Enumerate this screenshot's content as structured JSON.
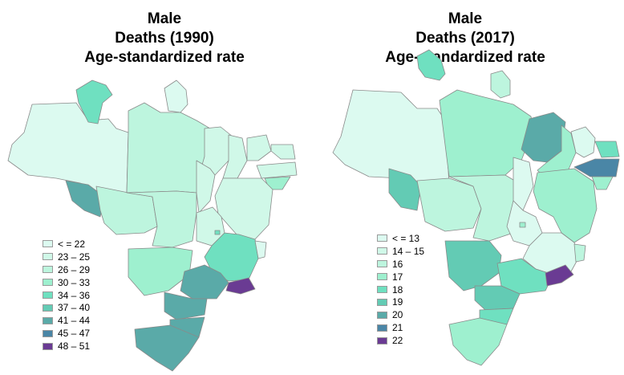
{
  "panels": [
    {
      "title": [
        "Male",
        "Deaths (1990)",
        "Age-standardized rate"
      ],
      "legend": [
        {
          "label": "< = 22",
          "color": "#dcfaf0"
        },
        {
          "label": "23 – 25",
          "color": "#d0f8e8"
        },
        {
          "label": "26 – 29",
          "color": "#bdf5de"
        },
        {
          "label": "30 – 33",
          "color": "#9ef0cf"
        },
        {
          "label": "34 – 36",
          "color": "#6fe0c0"
        },
        {
          "label": "37 – 40",
          "color": "#63cbb4"
        },
        {
          "label": "41 – 44",
          "color": "#5aaaa8"
        },
        {
          "label": "45 – 47",
          "color": "#4a86a6"
        },
        {
          "label": "48 – 51",
          "color": "#6a3b93"
        }
      ]
    },
    {
      "title": [
        "Male",
        "Deaths (2017)",
        "Age-standardized rate"
      ],
      "legend": [
        {
          "label": "< = 13",
          "color": "#dcfaf0"
        },
        {
          "label": "14 – 15",
          "color": "#d0f8e8"
        },
        {
          "label": "16",
          "color": "#bdf5de"
        },
        {
          "label": "17",
          "color": "#9ef0cf"
        },
        {
          "label": "18",
          "color": "#6fe0c0"
        },
        {
          "label": "19",
          "color": "#63cbb4"
        },
        {
          "label": "20",
          "color": "#5aaaa8"
        },
        {
          "label": "21",
          "color": "#4a86a6"
        },
        {
          "label": "22",
          "color": "#6a3b93"
        }
      ]
    }
  ]
}
